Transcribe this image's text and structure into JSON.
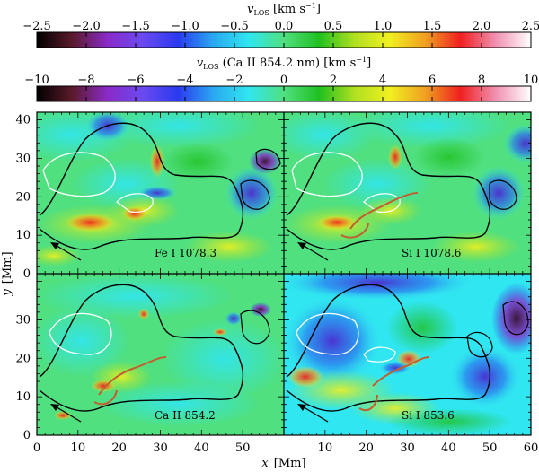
{
  "colorbars": [
    {
      "label": "v_LOS [km s⁻¹]",
      "label_main": "v",
      "label_sub": "LOS",
      "label_rest": " [km s",
      "label_exp": "−1",
      "label_end": "]",
      "ticks": [
        "−2.5",
        "−2.0",
        "−1.5",
        "−1.0",
        "−0.5",
        "0.0",
        "0.5",
        "1.0",
        "1.5",
        "2.0",
        "2.5"
      ],
      "range": [
        -2.5,
        2.5
      ]
    },
    {
      "label": "v_LOS (Ca II 854.2 nm) [km s⁻¹]",
      "label_main": "v",
      "label_sub": "LOS",
      "label_rest": "  (Ca II 854.2 nm) [km s",
      "label_exp": "−1",
      "label_end": "]",
      "ticks": [
        "−10",
        "−8",
        "−6",
        "−4",
        "−2",
        "0",
        "2",
        "4",
        "6",
        "8",
        "10"
      ],
      "range": [
        -10,
        10
      ]
    }
  ],
  "colormap": [
    "#000000",
    "#5a1a2a",
    "#8a2ac8",
    "#6a4af0",
    "#2a3af0",
    "#2aa8f0",
    "#30e6f0",
    "#50e080",
    "#20c020",
    "#b0e020",
    "#f0f020",
    "#f0a020",
    "#f02020",
    "#f090b0",
    "#ffffff"
  ],
  "panels": [
    {
      "label": "Fe I 1078.3"
    },
    {
      "label": "Si I 1078.6"
    },
    {
      "label": "Ca II 854.2"
    },
    {
      "label": "Si I 853.6"
    }
  ],
  "axes": {
    "xlabel_main": "x",
    "xlabel_unit": "[Mm]",
    "ylabel_main": "y",
    "ylabel_unit": "[Mm]",
    "x_ticks": [
      "0",
      "10",
      "20",
      "30",
      "40",
      "50",
      "10",
      "20",
      "30",
      "40",
      "50",
      "60"
    ],
    "y_ticks_upper": [
      "40",
      "30",
      "20",
      "10",
      "0"
    ],
    "y_ticks_lower": [
      "30",
      "20",
      "10",
      "0"
    ]
  }
}
